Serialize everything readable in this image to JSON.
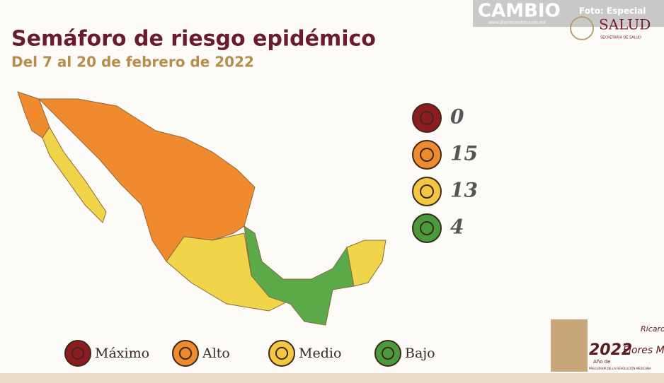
{
  "header": {
    "title": "Semáforo de riesgo epidémico",
    "subtitle": "Del 7 al 20 de febrero de 2022"
  },
  "watermark": {
    "brand": "CAMBIO",
    "site": "www.diariocambio.com.mx",
    "credit": "Foto:  Especial"
  },
  "logo": {
    "name": "SALUD",
    "agency": "SECRETARÍA DE SALUD"
  },
  "counts": [
    {
      "level": "máximo",
      "value": 0
    },
    {
      "level": "alto",
      "value": 15
    },
    {
      "level": "medio",
      "value": 13
    },
    {
      "level": "bajo",
      "value": 4
    }
  ],
  "legend": [
    "Máximo",
    "Alto",
    "Medio",
    "Bajo"
  ],
  "footer": {
    "year": "2022",
    "year_note": "Año de",
    "name_top": "Ricardo",
    "name_bottom": "Flores Magón",
    "tagline": "PRECURSOR DE LA REVOLUCIÓN MEXICANA"
  }
}
